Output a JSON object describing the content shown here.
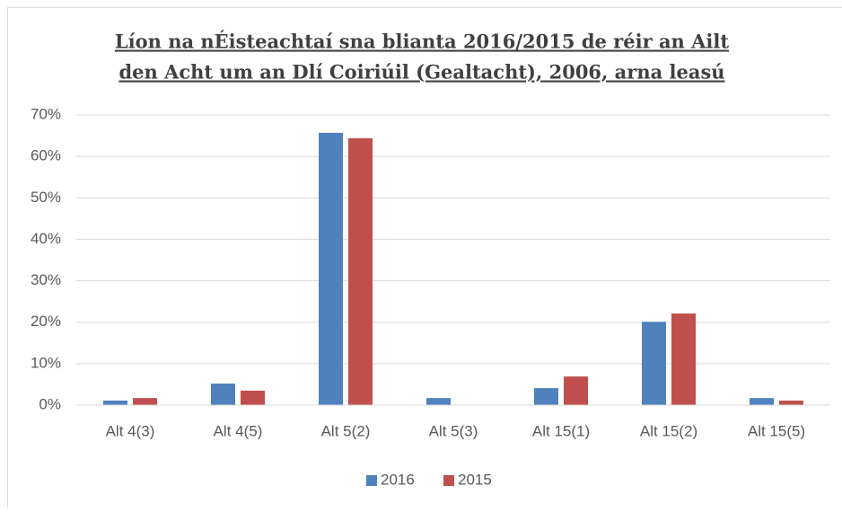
{
  "chart_data": {
    "type": "bar",
    "title": [
      "Líon na nÉisteachtaí sna blianta 2016/2015 de réir an Ailt",
      "den Acht um an Dlí Coiriúil (Gealtacht), 2006, arna leasú"
    ],
    "categories": [
      "Alt 4(3)",
      "Alt 4(5)",
      "Alt 5(2)",
      "Alt 5(3)",
      "Alt 15(1)",
      "Alt 15(2)",
      "Alt 15(5)"
    ],
    "series": [
      {
        "name": "2016",
        "color": "#4f81bd",
        "values": [
          1.1,
          5.2,
          65.7,
          1.7,
          4.1,
          20.1,
          1.7
        ]
      },
      {
        "name": "2015",
        "color": "#c0504d",
        "values": [
          1.7,
          3.5,
          64.4,
          0,
          6.9,
          22.1,
          1.1
        ]
      }
    ],
    "ylim": [
      0,
      70
    ],
    "yticks": [
      {
        "value": 0,
        "label": "0%"
      },
      {
        "value": 10,
        "label": "10%"
      },
      {
        "value": 20,
        "label": "20%"
      },
      {
        "value": 30,
        "label": "30%"
      },
      {
        "value": 40,
        "label": "40%"
      },
      {
        "value": 50,
        "label": "50%"
      },
      {
        "value": 60,
        "label": "60%"
      },
      {
        "value": 70,
        "label": "70%"
      }
    ],
    "grid": true,
    "legend": "bottom"
  }
}
